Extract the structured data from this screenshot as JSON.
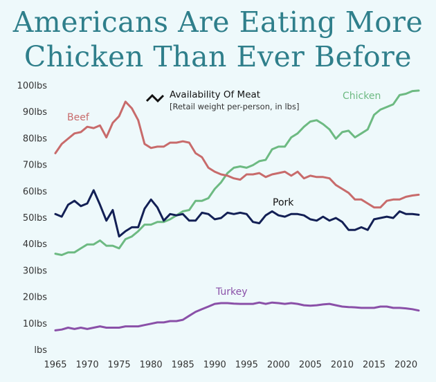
{
  "title_line1": "Americans Are Eating More",
  "title_line2": "Chicken Than Ever Before",
  "legend": {
    "title": "Availability Of Meat",
    "subtitle": "[Retail weight per-person, in lbs]",
    "icon": "zigzag-line-icon"
  },
  "colors": {
    "background": "#eef9fb",
    "title": "#2f7f8b",
    "Chicken": "#6dba82",
    "Beef": "#c86b6b",
    "Pork": "#132055",
    "Turkey": "#8a50a8"
  },
  "chart_data": {
    "type": "line",
    "xlim": [
      1965,
      2022
    ],
    "ylim": [
      0,
      100
    ],
    "x_ticks": [
      "1965",
      "1970",
      "1975",
      "1980",
      "1985",
      "1990",
      "1995",
      "2000",
      "2005",
      "2010",
      "2015",
      "2020"
    ],
    "y_ticks": [
      "lbs",
      "10lbs",
      "20lbs",
      "30lbs",
      "40lbs",
      "50lbs",
      "60lbs",
      "70lbs",
      "80lbs",
      "90lbs",
      "100lbs"
    ],
    "grid": false,
    "x": [
      1965,
      1966,
      1967,
      1968,
      1969,
      1970,
      1971,
      1972,
      1973,
      1974,
      1975,
      1976,
      1977,
      1978,
      1979,
      1980,
      1981,
      1982,
      1983,
      1984,
      1985,
      1986,
      1987,
      1988,
      1989,
      1990,
      1991,
      1992,
      1993,
      1994,
      1995,
      1996,
      1997,
      1998,
      1999,
      2000,
      2001,
      2002,
      2003,
      2004,
      2005,
      2006,
      2007,
      2008,
      2009,
      2010,
      2011,
      2012,
      2013,
      2014,
      2015,
      2016,
      2017,
      2018,
      2019,
      2020,
      2021,
      2022
    ],
    "series": [
      {
        "name": "Chicken",
        "values": [
          36.5,
          36,
          37,
          37,
          38.5,
          40,
          40,
          41.5,
          39.5,
          39.5,
          38.5,
          42,
          43,
          45,
          47.5,
          47.5,
          48.5,
          48.5,
          49.5,
          51,
          52.5,
          53,
          56.5,
          56.5,
          57.5,
          61,
          63.5,
          67,
          69,
          69.5,
          69,
          70,
          71.5,
          72,
          76,
          77,
          77,
          80.5,
          82,
          84.5,
          86.5,
          87,
          85.5,
          83.5,
          80,
          82.5,
          83,
          80.5,
          82,
          83.5,
          89,
          91,
          92,
          93,
          96.5,
          97,
          98,
          98.2
        ]
      },
      {
        "name": "Beef",
        "values": [
          74.5,
          78,
          80,
          82,
          82.5,
          84.5,
          84,
          85,
          80.5,
          86,
          88.5,
          94,
          91.5,
          87,
          78,
          76.5,
          77,
          77,
          78.5,
          78.5,
          79,
          78.5,
          74.5,
          73,
          69,
          67.5,
          66.5,
          66,
          65,
          64.5,
          66.5,
          66.5,
          67,
          65.5,
          66.5,
          67,
          67.5,
          66,
          67.5,
          65,
          66,
          65.5,
          65.5,
          65,
          62.5,
          61,
          59.5,
          57,
          57,
          55.5,
          54,
          54,
          56.5,
          57,
          57,
          58,
          58.5,
          58.8
        ]
      },
      {
        "name": "Pork",
        "values": [
          51.5,
          50.5,
          55,
          56.5,
          54.5,
          55.5,
          60.5,
          55,
          49,
          53,
          43,
          45,
          46.5,
          46.5,
          53.5,
          57,
          54,
          49,
          51.5,
          51,
          51.5,
          49,
          49,
          52,
          51.5,
          49.5,
          50,
          52,
          51.5,
          52,
          51.5,
          48.5,
          48,
          51,
          52.5,
          51,
          50.5,
          51.5,
          51.5,
          51,
          49.5,
          49,
          50.5,
          49,
          50,
          48.5,
          45.5,
          45.5,
          46.5,
          45.5,
          49.5,
          50,
          50.5,
          50,
          52.5,
          51.5,
          51.5,
          51.2
        ]
      },
      {
        "name": "Turkey",
        "values": [
          7.5,
          7.8,
          8.5,
          8,
          8.5,
          8,
          8.5,
          9,
          8.5,
          8.5,
          8.5,
          9,
          9,
          9,
          9.5,
          10,
          10.5,
          10.5,
          11,
          11,
          11.5,
          13,
          14.5,
          15.5,
          16.5,
          17.5,
          17.8,
          17.8,
          17.6,
          17.5,
          17.5,
          17.5,
          18,
          17.5,
          18,
          17.8,
          17.5,
          17.8,
          17.5,
          17,
          16.8,
          17,
          17.3,
          17.5,
          17,
          16.5,
          16.3,
          16.2,
          16,
          16,
          16,
          16.5,
          16.5,
          16,
          16,
          15.8,
          15.5,
          15
        ]
      }
    ]
  }
}
